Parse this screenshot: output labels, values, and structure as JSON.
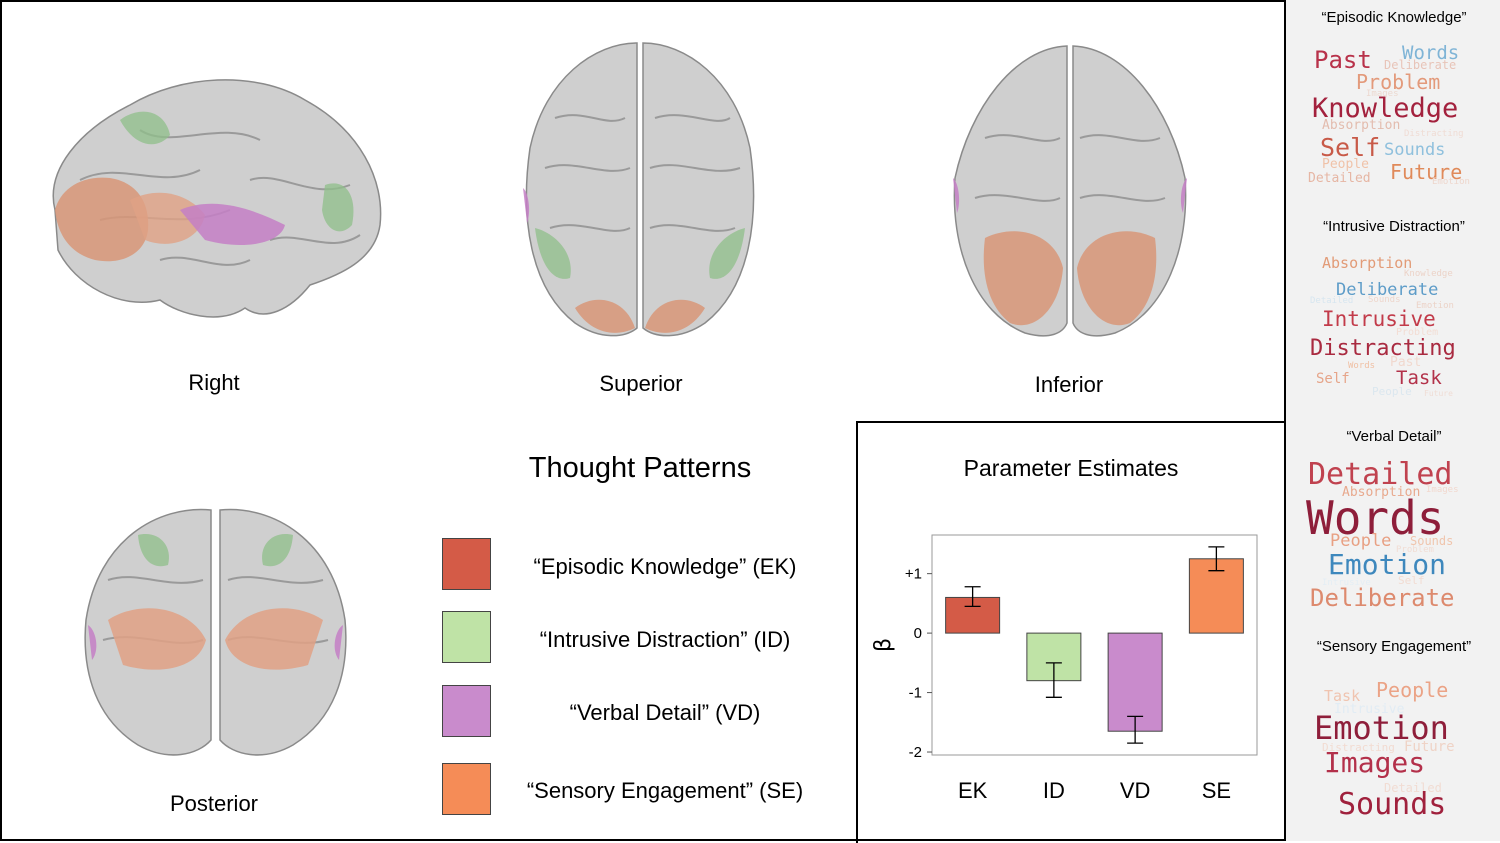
{
  "views": {
    "right": "Right",
    "superior": "Superior",
    "inferior": "Inferior",
    "posterior": "Posterior"
  },
  "legend": {
    "title": "Thought Patterns",
    "items": [
      {
        "label": "“Episodic Knowledge” (EK)",
        "color": "#d45b47"
      },
      {
        "label": "“Intrusive Distraction” (ID)",
        "color": "#bfe3a6"
      },
      {
        "label": "“Verbal Detail” (VD)",
        "color": "#c98bcc"
      },
      {
        "label": "“Sensory Engagement” (SE)",
        "color": "#f58c57"
      }
    ]
  },
  "chart_data": {
    "type": "bar",
    "title": "Parameter Estimates",
    "ylabel": "β",
    "categories": [
      "EK",
      "ID",
      "VD",
      "SE"
    ],
    "values": [
      0.6,
      -0.8,
      -1.65,
      1.25
    ],
    "error_low": [
      0.45,
      -1.08,
      -1.85,
      1.05
    ],
    "error_high": [
      0.78,
      -0.5,
      -1.4,
      1.45
    ],
    "colors": [
      "#d45b47",
      "#bfe3a6",
      "#c98bcc",
      "#f58c57"
    ],
    "ylim": [
      -2.05,
      1.65
    ],
    "yticks": [
      1,
      0,
      -1,
      -2
    ],
    "ytick_labels": [
      "+1",
      "0",
      "-1",
      "-2"
    ],
    "grid": false
  },
  "word_clouds": [
    {
      "title": "“Episodic Knowledge”",
      "words": [
        {
          "text": "Past",
          "color": "#b8324a"
        },
        {
          "text": "Words",
          "color": "#7fb4d6"
        },
        {
          "text": "Deliberate",
          "color": "#e8c4b8"
        },
        {
          "text": "Problem",
          "color": "#e39a7b"
        },
        {
          "text": "Images",
          "color": "#ecd9d0"
        },
        {
          "text": "Knowledge",
          "color": "#a3213d"
        },
        {
          "text": "Absorption",
          "color": "#e3bcae"
        },
        {
          "text": "Distracting",
          "color": "#f0dcd4"
        },
        {
          "text": "Self",
          "color": "#c85a48"
        },
        {
          "text": "Sounds",
          "color": "#8fc0dd"
        },
        {
          "text": "People",
          "color": "#f0c2a8"
        },
        {
          "text": "Detailed",
          "color": "#e6b6a4"
        },
        {
          "text": "Future",
          "color": "#e08a5a"
        },
        {
          "text": "Emotion",
          "color": "#eed6cc"
        }
      ]
    },
    {
      "title": "“Intrusive Distraction”",
      "words": [
        {
          "text": "Absorption",
          "color": "#e29b77"
        },
        {
          "text": "Knowledge",
          "color": "#ecd3c8"
        },
        {
          "text": "Deliberate",
          "color": "#5d9cc8"
        },
        {
          "text": "Detailed",
          "color": "#d7e6f0"
        },
        {
          "text": "Sounds",
          "color": "#eed7cd"
        },
        {
          "text": "Emotion",
          "color": "#ecd3c8"
        },
        {
          "text": "Intrusive",
          "color": "#c23b4a"
        },
        {
          "text": "Problem",
          "color": "#f3ddd4"
        },
        {
          "text": "Distracting",
          "color": "#a92a40"
        },
        {
          "text": "Past",
          "color": "#f1d9cf"
        },
        {
          "text": "Words",
          "color": "#f0c0a4"
        },
        {
          "text": "Self",
          "color": "#e6a58a"
        },
        {
          "text": "Task",
          "color": "#b3324a"
        },
        {
          "text": "People",
          "color": "#dbe7ef"
        },
        {
          "text": "Future",
          "color": "#f0ddd5"
        }
      ]
    },
    {
      "title": "“Verbal Detail”",
      "words": [
        {
          "text": "Detailed",
          "color": "#c0424f"
        },
        {
          "text": "Absorption",
          "color": "#e8a98e"
        },
        {
          "text": "Images",
          "color": "#f2d8ce"
        },
        {
          "text": "Words",
          "color": "#8e1e3a"
        },
        {
          "text": "People",
          "color": "#e8a083"
        },
        {
          "text": "Sounds",
          "color": "#f0c5ad"
        },
        {
          "text": "Problem",
          "color": "#f1ddd4"
        },
        {
          "text": "Emotion",
          "color": "#3e88bd"
        },
        {
          "text": "Intrusive",
          "color": "#e4eef5"
        },
        {
          "text": "Self",
          "color": "#f2dcd2"
        },
        {
          "text": "Deliberate",
          "color": "#dd8a6e"
        }
      ]
    },
    {
      "title": "“Sensory Engagement”",
      "words": [
        {
          "text": "Task",
          "color": "#f0c4b0"
        },
        {
          "text": "People",
          "color": "#eba386"
        },
        {
          "text": "Intrusive",
          "color": "#e1ecf4"
        },
        {
          "text": "Emotion",
          "color": "#8e1e3a"
        },
        {
          "text": "Distracting",
          "color": "#f2dbd1"
        },
        {
          "text": "Future",
          "color": "#efd3c6"
        },
        {
          "text": "Images",
          "color": "#b3304a"
        },
        {
          "text": "Detailed",
          "color": "#f1dcd3"
        },
        {
          "text": "Sounds",
          "color": "#a0213d"
        }
      ]
    }
  ]
}
